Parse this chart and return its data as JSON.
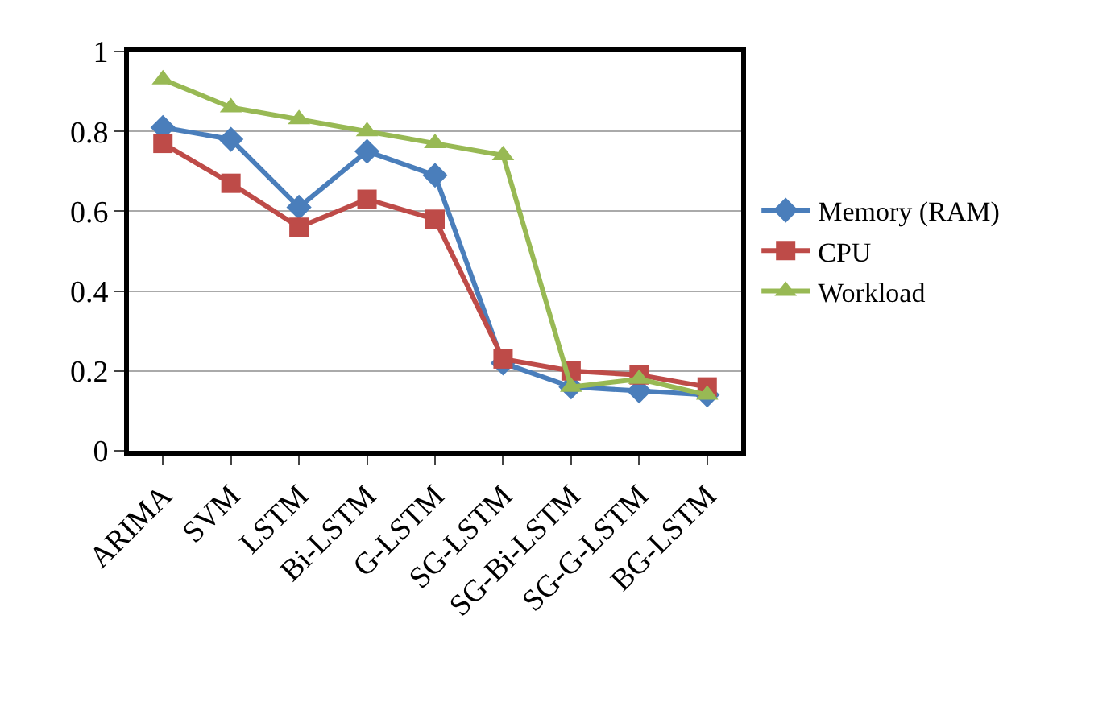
{
  "chart_data": {
    "type": "line",
    "categories": [
      "ARIMA",
      "SVM",
      "LSTM",
      "Bi-LSTM",
      "G-LSTM",
      "SG-LSTM",
      "SG-Bi-LSTM",
      "SG-G-LSTM",
      "BG-LSTM"
    ],
    "series": [
      {
        "name": "Memory (RAM)",
        "color": "#4a7ebb",
        "marker": "diamond",
        "values": [
          0.81,
          0.78,
          0.61,
          0.75,
          0.69,
          0.22,
          0.16,
          0.15,
          0.14
        ]
      },
      {
        "name": "CPU",
        "color": "#be4b48",
        "marker": "square",
        "values": [
          0.77,
          0.67,
          0.56,
          0.63,
          0.58,
          0.23,
          0.2,
          0.19,
          0.16
        ]
      },
      {
        "name": "Workload",
        "color": "#98b954",
        "marker": "triangle",
        "values": [
          0.93,
          0.86,
          0.83,
          0.8,
          0.77,
          0.74,
          0.16,
          0.18,
          0.14
        ]
      }
    ],
    "ylim": [
      0,
      1
    ],
    "yticks": [
      0,
      0.2,
      0.4,
      0.6,
      0.8,
      1
    ],
    "grid": "y",
    "legend": "right"
  }
}
